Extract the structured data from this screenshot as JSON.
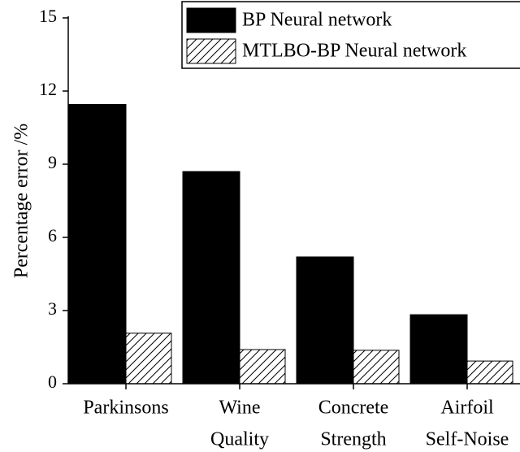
{
  "chart_data": {
    "type": "bar",
    "ylabel": "Percentage error /%",
    "categories": [
      [
        "Parkinsons"
      ],
      [
        "Wine",
        "Quality"
      ],
      [
        "Concrete",
        "Strength"
      ],
      [
        "Airfoil",
        "Self-Noise"
      ]
    ],
    "series": [
      {
        "name": "BP Neural network",
        "color": "#000000",
        "hatch": false,
        "values": [
          11.45,
          8.7,
          5.2,
          2.83
        ]
      },
      {
        "name": "MTLBO-BP Neural network",
        "color": "#000000",
        "hatch": true,
        "values": [
          2.07,
          1.4,
          1.37,
          0.93
        ]
      }
    ],
    "ylim": [
      0,
      15
    ],
    "yticks": [
      0,
      3,
      6,
      9,
      12,
      15
    ],
    "legend": "upper right"
  }
}
